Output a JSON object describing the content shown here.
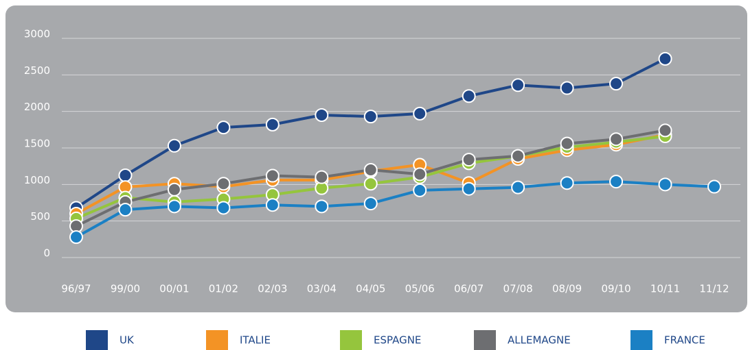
{
  "chart_data": {
    "type": "line",
    "categories": [
      "96/97",
      "99/00",
      "00/01",
      "01/02",
      "02/03",
      "03/04",
      "04/05",
      "05/06",
      "06/07",
      "07/08",
      "08/09",
      "09/10",
      "10/11",
      "11/12"
    ],
    "series": [
      {
        "name": "UK",
        "color": "#1f4788",
        "values": [
          680,
          1125,
          1530,
          1780,
          1820,
          1950,
          1930,
          1970,
          2210,
          2360,
          2320,
          2380,
          2720,
          null
        ]
      },
      {
        "name": "ITALIE",
        "color": "#f39325",
        "values": [
          600,
          965,
          1010,
          970,
          1060,
          1060,
          1180,
          1270,
          1020,
          1350,
          1470,
          1545,
          1680,
          null
        ]
      },
      {
        "name": "ESPAGNE",
        "color": "#95c53d",
        "values": [
          535,
          820,
          760,
          800,
          860,
          950,
          1010,
          1100,
          1290,
          1390,
          1510,
          1580,
          1660,
          null
        ]
      },
      {
        "name": "ALLEMAGNE",
        "color": "#6d6e71",
        "values": [
          430,
          760,
          930,
          1010,
          1120,
          1100,
          1200,
          1140,
          1340,
          1390,
          1560,
          1620,
          1740,
          null
        ]
      },
      {
        "name": "FRANCE",
        "color": "#1b80c4",
        "values": [
          280,
          655,
          700,
          680,
          720,
          700,
          740,
          920,
          940,
          960,
          1020,
          1040,
          1000,
          970
        ]
      }
    ],
    "ylim": [
      0,
      3000
    ],
    "yticks": [
      0,
      500,
      1000,
      1500,
      2000,
      2500,
      3000
    ],
    "grid": true,
    "legend": "bottom"
  }
}
